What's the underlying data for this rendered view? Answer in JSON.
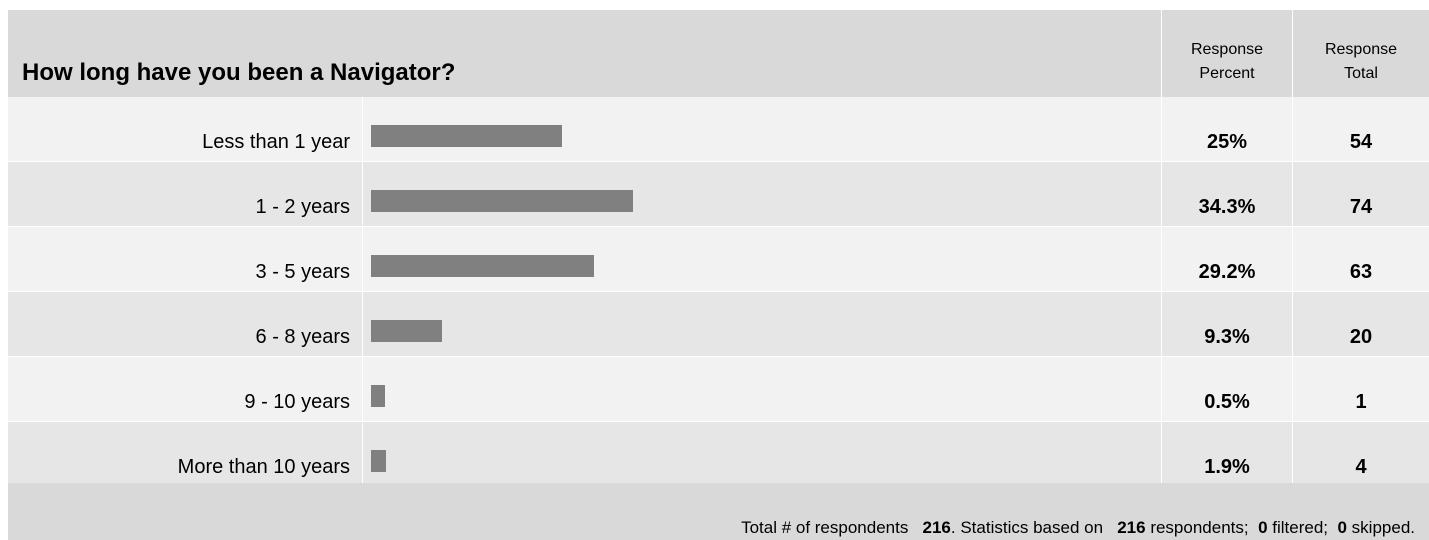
{
  "question": "How long have you been a Navigator?",
  "columns": {
    "percent": "Response Percent",
    "percent_line1": "Response",
    "percent_line2": "Percent",
    "total_line1": "Response",
    "total_line2": "Total"
  },
  "chart_data": {
    "type": "bar",
    "orientation": "horizontal",
    "categories": [
      "Less than 1 year",
      "1 - 2 years",
      "3 - 5 years",
      "6 - 8 years",
      "9 - 10 years",
      "More than 10 years"
    ],
    "percent_labels": [
      "25%",
      "34.3%",
      "29.2%",
      "9.3%",
      "0.5%",
      "1.9%"
    ],
    "percent_values": [
      25,
      34.3,
      29.2,
      9.3,
      0.5,
      1.9
    ],
    "totals": [
      "54",
      "74",
      "63",
      "20",
      "1",
      "4"
    ],
    "bar_color": "#808080"
  },
  "footer": {
    "prefix": "Total # of respondents",
    "respondents": "216",
    "mid": ". Statistics based on",
    "based_on": "216",
    "respondents_word": "respondents;",
    "filtered": "0",
    "filtered_word": "filtered;",
    "skipped": "0",
    "skipped_word": "skipped."
  },
  "colors": {
    "header_bg": "#d9d9d9",
    "row_odd": "#f2f2f2",
    "row_even": "#e6e6e6"
  }
}
